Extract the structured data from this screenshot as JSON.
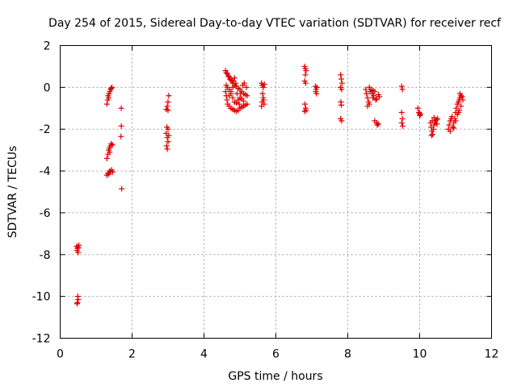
{
  "chart_data": {
    "type": "scatter",
    "title": "Day 254 of 2015, Sidereal Day-to-day VTEC variation (SDTVAR) for receiver recf",
    "xlabel": "GPS time / hours",
    "ylabel": "SDTVAR / TECUs",
    "xlim": [
      0,
      12
    ],
    "ylim": [
      -12,
      2
    ],
    "xticks": [
      0,
      2,
      4,
      6,
      8,
      10,
      12
    ],
    "yticks": [
      -12,
      -10,
      -8,
      -6,
      -4,
      -2,
      0,
      2
    ],
    "xtick_labels": [
      "0",
      "2",
      "4",
      "6",
      "8",
      "10",
      "12"
    ],
    "ytick_labels": [
      "-12",
      "-10",
      "-8",
      "-6",
      "-4",
      "-2",
      "0",
      "2"
    ],
    "grid": true,
    "marker": "+",
    "color": "#e00000",
    "series": [
      {
        "name": "SDTVAR",
        "points": [
          [
            0.46,
            -7.6
          ],
          [
            0.48,
            -7.7
          ],
          [
            0.5,
            -7.65
          ],
          [
            0.47,
            -7.8
          ],
          [
            0.5,
            -7.9
          ],
          [
            0.52,
            -7.55
          ],
          [
            0.49,
            -7.7
          ],
          [
            0.48,
            -10.3
          ],
          [
            0.5,
            -10.15
          ],
          [
            0.49,
            -10.0
          ],
          [
            0.47,
            -10.35
          ],
          [
            1.3,
            -0.8
          ],
          [
            1.32,
            -0.6
          ],
          [
            1.33,
            -0.4
          ],
          [
            1.36,
            -0.3
          ],
          [
            1.38,
            -0.2
          ],
          [
            1.4,
            -0.1
          ],
          [
            1.42,
            -0.05
          ],
          [
            1.44,
            0.0
          ],
          [
            1.35,
            -0.5
          ],
          [
            1.3,
            -3.4
          ],
          [
            1.33,
            -3.2
          ],
          [
            1.35,
            -3.0
          ],
          [
            1.37,
            -2.9
          ],
          [
            1.4,
            -2.8
          ],
          [
            1.42,
            -2.7
          ],
          [
            1.45,
            -2.75
          ],
          [
            1.38,
            -3.1
          ],
          [
            1.3,
            -4.2
          ],
          [
            1.33,
            -4.1
          ],
          [
            1.35,
            -4.15
          ],
          [
            1.38,
            -4.0
          ],
          [
            1.4,
            -4.05
          ],
          [
            1.43,
            -3.95
          ],
          [
            1.46,
            -4.05
          ],
          [
            1.7,
            -1.0
          ],
          [
            1.7,
            -1.85
          ],
          [
            1.69,
            -2.35
          ],
          [
            1.71,
            -4.85
          ],
          [
            2.95,
            -2.2
          ],
          [
            2.98,
            -2.4
          ],
          [
            3.0,
            -2.6
          ],
          [
            2.96,
            -2.8
          ],
          [
            2.98,
            -2.95
          ],
          [
            3.02,
            -2.3
          ],
          [
            3.0,
            -2.0
          ],
          [
            2.97,
            -1.9
          ],
          [
            2.95,
            -1.05
          ],
          [
            2.98,
            -0.9
          ],
          [
            3.0,
            -0.7
          ],
          [
            3.02,
            -0.4
          ],
          [
            3.0,
            -1.1
          ],
          [
            4.6,
            0.8
          ],
          [
            4.62,
            0.7
          ],
          [
            4.65,
            0.65
          ],
          [
            4.68,
            0.55
          ],
          [
            4.7,
            0.5
          ],
          [
            4.72,
            0.4
          ],
          [
            4.75,
            0.35
          ],
          [
            4.78,
            0.3
          ],
          [
            4.8,
            0.2
          ],
          [
            4.85,
            0.1
          ],
          [
            4.9,
            0.05
          ],
          [
            4.95,
            -0.05
          ],
          [
            5.0,
            -0.1
          ],
          [
            5.05,
            -0.2
          ],
          [
            5.1,
            -0.3
          ],
          [
            5.15,
            -0.35
          ],
          [
            5.2,
            -0.4
          ],
          [
            4.6,
            -0.2
          ],
          [
            4.62,
            -0.4
          ],
          [
            4.64,
            -0.6
          ],
          [
            4.66,
            -0.8
          ],
          [
            4.7,
            -0.9
          ],
          [
            4.75,
            -1.0
          ],
          [
            4.8,
            -1.05
          ],
          [
            4.85,
            -1.1
          ],
          [
            4.9,
            -1.15
          ],
          [
            4.95,
            -1.1
          ],
          [
            5.0,
            -1.0
          ],
          [
            5.05,
            -0.95
          ],
          [
            5.1,
            -0.9
          ],
          [
            5.15,
            -0.85
          ],
          [
            5.2,
            -0.8
          ],
          [
            4.62,
            0.1
          ],
          [
            4.65,
            0.0
          ],
          [
            4.7,
            -0.1
          ],
          [
            4.75,
            -0.3
          ],
          [
            4.8,
            -0.5
          ],
          [
            4.85,
            -0.7
          ],
          [
            4.9,
            -0.75
          ],
          [
            4.95,
            -0.6
          ],
          [
            5.0,
            -0.5
          ],
          [
            5.05,
            -0.55
          ],
          [
            5.1,
            -0.65
          ],
          [
            4.7,
            -0.4
          ],
          [
            4.75,
            -0.2
          ],
          [
            4.8,
            0.0
          ],
          [
            4.82,
            0.3
          ],
          [
            4.85,
            0.45
          ],
          [
            4.88,
            0.2
          ],
          [
            4.92,
            -0.3
          ],
          [
            4.98,
            -0.8
          ],
          [
            5.02,
            -0.3
          ],
          [
            5.08,
            0.1
          ],
          [
            5.12,
            0.2
          ],
          [
            5.18,
            0.0
          ],
          [
            5.6,
            0.2
          ],
          [
            5.62,
            0.1
          ],
          [
            5.65,
            0.0
          ],
          [
            5.63,
            -0.3
          ],
          [
            5.65,
            -0.5
          ],
          [
            5.62,
            -0.7
          ],
          [
            5.67,
            -0.8
          ],
          [
            5.66,
            -0.6
          ],
          [
            5.6,
            -0.9
          ],
          [
            5.68,
            0.15
          ],
          [
            6.8,
            1.0
          ],
          [
            6.82,
            0.9
          ],
          [
            6.84,
            0.8
          ],
          [
            6.82,
            0.6
          ],
          [
            6.8,
            0.3
          ],
          [
            6.83,
            0.2
          ],
          [
            6.81,
            -0.8
          ],
          [
            6.83,
            -1.0
          ],
          [
            6.84,
            -1.1
          ],
          [
            6.8,
            -1.15
          ],
          [
            7.1,
            0.05
          ],
          [
            7.12,
            -0.1
          ],
          [
            7.14,
            0.0
          ],
          [
            7.11,
            -0.2
          ],
          [
            7.13,
            -0.3
          ],
          [
            7.8,
            0.6
          ],
          [
            7.82,
            0.4
          ],
          [
            7.84,
            0.2
          ],
          [
            7.8,
            0.0
          ],
          [
            7.83,
            -0.1
          ],
          [
            7.81,
            -0.7
          ],
          [
            7.82,
            -0.85
          ],
          [
            7.8,
            -1.5
          ],
          [
            7.83,
            -1.6
          ],
          [
            8.5,
            -0.1
          ],
          [
            8.52,
            -0.3
          ],
          [
            8.55,
            -0.5
          ],
          [
            8.58,
            -0.7
          ],
          [
            8.6,
            -0.8
          ],
          [
            8.62,
            -0.2
          ],
          [
            8.65,
            -0.1
          ],
          [
            8.68,
            -0.3
          ],
          [
            8.7,
            -0.5
          ],
          [
            8.72,
            -0.4
          ],
          [
            8.75,
            -0.2
          ],
          [
            8.78,
            -0.6
          ],
          [
            8.8,
            -0.55
          ],
          [
            8.85,
            -0.35
          ],
          [
            8.88,
            -0.45
          ],
          [
            8.55,
            -0.9
          ],
          [
            8.6,
            0.0
          ],
          [
            8.7,
            -0.15
          ],
          [
            8.75,
            -1.6
          ],
          [
            8.8,
            -1.7
          ],
          [
            8.85,
            -1.75
          ],
          [
            8.82,
            -1.8
          ],
          [
            9.5,
            0.05
          ],
          [
            9.52,
            -0.1
          ],
          [
            9.5,
            -1.2
          ],
          [
            9.52,
            -1.5
          ],
          [
            9.5,
            -1.7
          ],
          [
            9.53,
            -1.85
          ],
          [
            9.95,
            -1.0
          ],
          [
            9.98,
            -1.2
          ],
          [
            10.0,
            -1.25
          ],
          [
            10.02,
            -1.3
          ],
          [
            10.0,
            -1.35
          ],
          [
            10.3,
            -1.7
          ],
          [
            10.32,
            -1.9
          ],
          [
            10.34,
            -2.1
          ],
          [
            10.36,
            -2.25
          ],
          [
            10.38,
            -2.0
          ],
          [
            10.4,
            -1.8
          ],
          [
            10.42,
            -1.7
          ],
          [
            10.44,
            -1.6
          ],
          [
            10.46,
            -1.55
          ],
          [
            10.5,
            -1.5
          ],
          [
            10.35,
            -1.6
          ],
          [
            10.4,
            -1.45
          ],
          [
            10.48,
            -1.75
          ],
          [
            10.33,
            -2.3
          ],
          [
            10.8,
            -2.0
          ],
          [
            10.82,
            -1.8
          ],
          [
            10.85,
            -1.6
          ],
          [
            10.88,
            -1.5
          ],
          [
            10.9,
            -1.4
          ],
          [
            10.92,
            -1.9
          ],
          [
            10.95,
            -1.7
          ],
          [
            10.98,
            -1.5
          ],
          [
            11.0,
            -1.2
          ],
          [
            11.02,
            -1.0
          ],
          [
            11.05,
            -0.8
          ],
          [
            11.08,
            -0.7
          ],
          [
            11.1,
            -0.6
          ],
          [
            11.12,
            -0.5
          ],
          [
            11.15,
            -0.4
          ],
          [
            11.18,
            -0.45
          ],
          [
            11.2,
            -0.6
          ],
          [
            11.05,
            -1.3
          ],
          [
            11.1,
            -1.1
          ],
          [
            11.15,
            -0.9
          ],
          [
            10.85,
            -2.1
          ],
          [
            10.95,
            -1.95
          ],
          [
            11.0,
            -1.6
          ],
          [
            11.08,
            -1.2
          ],
          [
            11.12,
            -0.3
          ]
        ]
      }
    ]
  }
}
